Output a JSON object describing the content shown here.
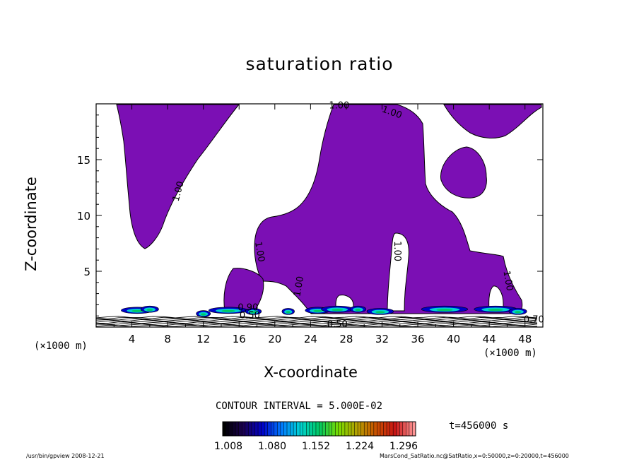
{
  "chart_data": {
    "type": "heatmap",
    "title": "saturation ratio",
    "xlabel": "X-coordinate",
    "ylabel": "Z-coordinate",
    "x_unit_label": "(×1000 m)",
    "x_ticks": [
      4,
      8,
      12,
      16,
      20,
      24,
      28,
      32,
      36,
      40,
      44,
      48
    ],
    "y_ticks": [
      5,
      10,
      15
    ],
    "xlim": [
      0,
      50
    ],
    "ylim": [
      0,
      20
    ],
    "contour_interval": "CONTOUR INTERVAL = 5.000E-02",
    "contour_labels": [
      "1.00",
      "1.00",
      "1.00",
      "1.00",
      "1.00",
      "1.00",
      "1.00",
      "0.50",
      "0.50",
      "0.90",
      "0.70"
    ],
    "colorbar": {
      "ticks": [
        "1.008",
        "1.080",
        "1.152",
        "1.224",
        "1.296"
      ],
      "colors": [
        "#000000",
        "#1a0050",
        "#0000c8",
        "#0078ff",
        "#00d2d2",
        "#00c864",
        "#78dc00",
        "#b4a000",
        "#c85000",
        "#c81414",
        "#ff9696"
      ]
    },
    "fill_color": "#7b0fb4",
    "time": "t=456000 s"
  },
  "footer": {
    "left": "/usr/bin/gpview  2008-12-21",
    "right": "MarsCond_SatRatio.nc@SatRatio,x=0:50000,z=0:20000,t=456000"
  }
}
